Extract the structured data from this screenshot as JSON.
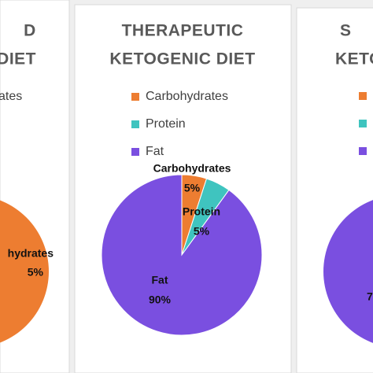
{
  "chart_data": {
    "type": "pie",
    "title": [
      "THERAPEUTIC",
      "KETOGENIC DIET"
    ],
    "categories": [
      "Carbohydrates",
      "Protein",
      "Fat"
    ],
    "values": [
      5,
      5,
      90
    ],
    "value_labels": [
      "5%",
      "5%",
      "90%"
    ],
    "colors": [
      "#ed7d31",
      "#3fc4bf",
      "#7a4fe0"
    ],
    "legend": "top"
  },
  "left_panel": {
    "title": [
      "D",
      "DIET"
    ],
    "legend_fragment": "ates",
    "label_fragment": "hydrates",
    "value_fragment": "5%"
  },
  "right_panel": {
    "title": [
      "S",
      "KETOG"
    ],
    "value_fragment": "7"
  }
}
